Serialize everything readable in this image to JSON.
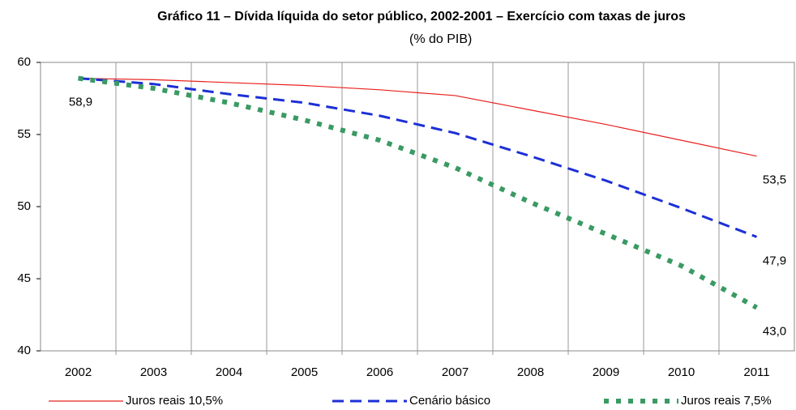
{
  "chart_data": {
    "type": "line",
    "title": "Gráfico 11 – Dívida líquida do setor público, 2002-2001 – Exercício com taxas   de juros",
    "unit": "(% do PIB)",
    "categories": [
      "2002",
      "2003",
      "2004",
      "2005",
      "2006",
      "2007",
      "2008",
      "2009",
      "2010",
      "2011"
    ],
    "series": [
      {
        "name": "Juros reais 10,5%",
        "color": "#e8201e",
        "style": "solid",
        "values": [
          58.9,
          58.8,
          58.6,
          58.4,
          58.1,
          57.7,
          56.7,
          55.7,
          54.6,
          53.5
        ],
        "value_labels": [
          null,
          null,
          null,
          null,
          null,
          null,
          null,
          null,
          null,
          "53,5"
        ]
      },
      {
        "name": "Cenário básico",
        "color": "#1c2fd6",
        "style": "dashed",
        "values": [
          58.9,
          58.5,
          57.8,
          57.2,
          56.3,
          55.1,
          53.5,
          51.8,
          49.9,
          47.9
        ],
        "value_labels": [
          null,
          null,
          null,
          null,
          null,
          null,
          null,
          null,
          null,
          "47,9"
        ]
      },
      {
        "name": "Juros reais 7,5%",
        "color": "#3a9a63",
        "style": "dotted",
        "values": [
          58.9,
          58.2,
          57.2,
          56.0,
          54.6,
          52.7,
          50.3,
          48.1,
          45.9,
          43.0
        ],
        "value_labels": [
          "58,9",
          null,
          null,
          null,
          null,
          null,
          null,
          null,
          null,
          "43,0"
        ]
      }
    ],
    "ylim": [
      40,
      60
    ],
    "yticks": [
      40,
      45,
      50,
      55,
      60
    ],
    "grid": "vertical"
  }
}
